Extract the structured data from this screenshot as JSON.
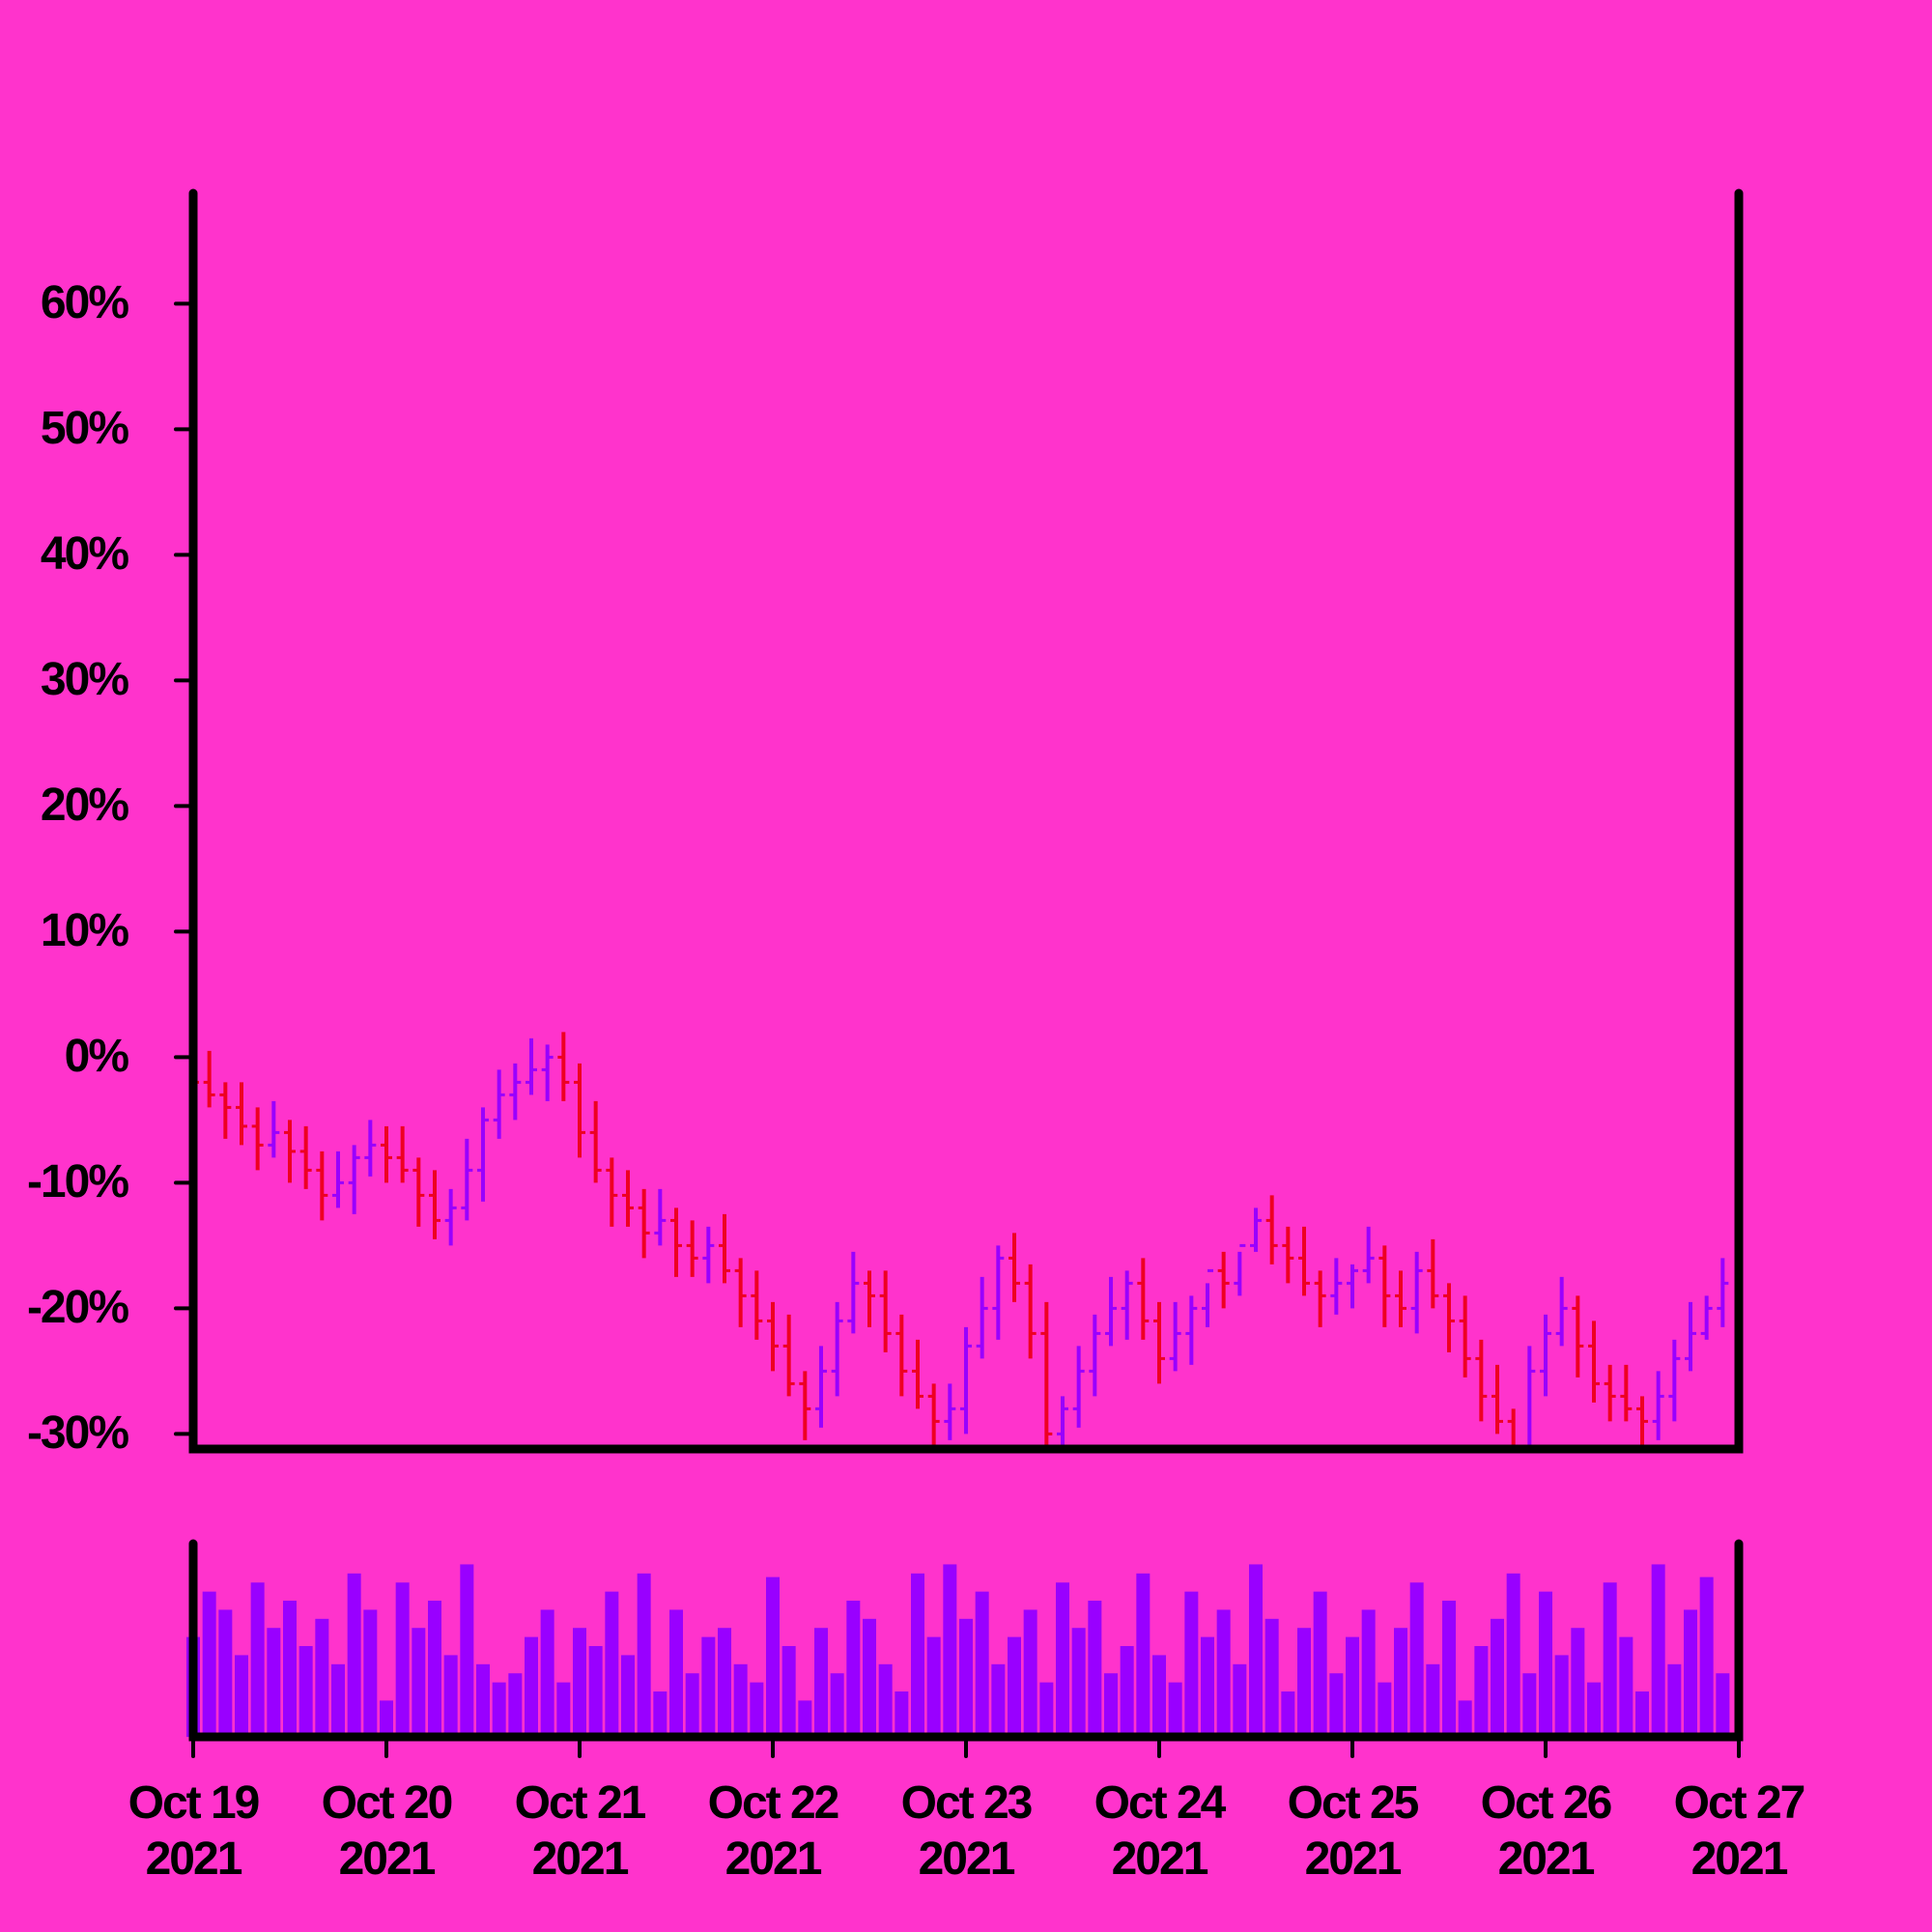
{
  "chart_data": {
    "type": "ohlc",
    "x": [
      0,
      2,
      4,
      6,
      8,
      10,
      12,
      14,
      16,
      18,
      20,
      22,
      24,
      26,
      28,
      30,
      32,
      34,
      36,
      38,
      40,
      42,
      44,
      46,
      48,
      50,
      52,
      54,
      56,
      58,
      60,
      62,
      64,
      66,
      68,
      70,
      72,
      74,
      76,
      78,
      80,
      82,
      84,
      86,
      88,
      90,
      92,
      94,
      96,
      98,
      100,
      102,
      104,
      106,
      108,
      110,
      112,
      114,
      116,
      118,
      120,
      122,
      124,
      126,
      128,
      130,
      132,
      134,
      136,
      138,
      140,
      142,
      144,
      146,
      148,
      150,
      152,
      154,
      156,
      158,
      160,
      162,
      164,
      166,
      168,
      170,
      172,
      174,
      176,
      178,
      180,
      182,
      184,
      186,
      188,
      190
    ],
    "open": [
      -1,
      -2,
      -3,
      -4,
      -5.5,
      -7,
      -6,
      -7.5,
      -9,
      -11,
      -10,
      -8,
      -7,
      -8,
      -9,
      -11,
      -13,
      -12,
      -9,
      -5,
      -3,
      -2,
      -1,
      0,
      -2,
      -6,
      -9,
      -11,
      -12,
      -14,
      -13,
      -15,
      -16,
      -15,
      -17,
      -19,
      -21,
      -23,
      -26,
      -28,
      -25,
      -21,
      -18,
      -19,
      -22,
      -25,
      -27,
      -29,
      -28,
      -23,
      -20,
      -16,
      -18,
      -22,
      -30,
      -28,
      -25,
      -22,
      -20,
      -18,
      -21,
      -24,
      -22,
      -20,
      -17,
      -18,
      -15,
      -13,
      -15,
      -16,
      -18,
      -19,
      -18,
      -17,
      -16,
      -19,
      -20,
      -17,
      -19,
      -21,
      -24,
      -27,
      -29,
      -31,
      -25,
      -22,
      -20,
      -23,
      -26,
      -27,
      -28,
      -29,
      -27,
      -24,
      -22,
      -20
    ],
    "high": [
      0.5,
      0.5,
      -2,
      -2,
      -4,
      -3.5,
      -5,
      -5.5,
      -7.5,
      -7.5,
      -7,
      -5,
      -5.5,
      -5.5,
      -8,
      -9,
      -10.5,
      -6.5,
      -4,
      -1,
      -0.5,
      1.5,
      1,
      2,
      -0.5,
      -3.5,
      -8,
      -9,
      -10.5,
      -10.5,
      -12,
      -13,
      -13.5,
      -12.5,
      -16,
      -17,
      -19.5,
      -20.5,
      -25,
      -23,
      -19.5,
      -15.5,
      -17,
      -17,
      -20.5,
      -22.5,
      -26,
      -26,
      -21.5,
      -17.5,
      -15,
      -14,
      -16.5,
      -19.5,
      -27,
      -23,
      -20.5,
      -17.5,
      -17,
      -16,
      -19.5,
      -19.5,
      -19,
      -18,
      -15.5,
      -15.5,
      -12,
      -11,
      -13.5,
      -13.5,
      -17,
      -16,
      -16.5,
      -13.5,
      -15,
      -17,
      -15.5,
      -14.5,
      -18,
      -19,
      -22.5,
      -24.5,
      -28,
      -23,
      -20.5,
      -17.5,
      -19,
      -21,
      -24.5,
      -24.5,
      -27,
      -25,
      -22.5,
      -19.5,
      -19,
      -16
    ],
    "low": [
      -4,
      -4,
      -6.5,
      -7,
      -9,
      -8,
      -10,
      -10.5,
      -13,
      -12,
      -12.5,
      -9.5,
      -10,
      -10,
      -13.5,
      -14.5,
      -15,
      -13,
      -11.5,
      -6.5,
      -5,
      -3,
      -3.5,
      -3.5,
      -8,
      -10,
      -13.5,
      -13.5,
      -16,
      -15,
      -17.5,
      -17.5,
      -18,
      -18,
      -21.5,
      -22.5,
      -25,
      -27,
      -30.5,
      -29.5,
      -27,
      -22,
      -21.5,
      -23.5,
      -27,
      -28,
      -31.5,
      -30.5,
      -30,
      -24,
      -22.5,
      -19.5,
      -24,
      -31,
      -32.5,
      -29.5,
      -27,
      -23,
      -22.5,
      -22.5,
      -26,
      -25,
      -24.5,
      -21.5,
      -20,
      -19,
      -15.5,
      -16.5,
      -18,
      -19,
      -21.5,
      -20.5,
      -20,
      -18,
      -21.5,
      -21.5,
      -22,
      -20,
      -23.5,
      -25.5,
      -29,
      -30,
      -33.5,
      -32.5,
      -27,
      -23,
      -25.5,
      -27.5,
      -29,
      -29,
      -31.5,
      -30.5,
      -29,
      -25,
      -22.5,
      -21.5
    ],
    "close": [
      -2,
      -3,
      -4,
      -5.5,
      -7,
      -6,
      -7.5,
      -9,
      -11,
      -10,
      -8,
      -7,
      -8,
      -9,
      -11,
      -13,
      -12,
      -9,
      -5,
      -3,
      -2,
      -1,
      0,
      -2,
      -6,
      -9,
      -11,
      -12,
      -14,
      -13,
      -15,
      -16,
      -15,
      -17,
      -19,
      -21,
      -23,
      -26,
      -28,
      -25,
      -21,
      -18,
      -19,
      -22,
      -25,
      -27,
      -29,
      -28,
      -23,
      -20,
      -16,
      -18,
      -22,
      -30,
      -28,
      -25,
      -22,
      -20,
      -18,
      -21,
      -24,
      -22,
      -20,
      -17,
      -18,
      -15,
      -13,
      -15,
      -16,
      -18,
      -19,
      -18,
      -17,
      -16,
      -19,
      -20,
      -17,
      -19,
      -21,
      -24,
      -27,
      -29,
      -31,
      -25,
      -22,
      -20,
      -23,
      -26,
      -27,
      -28,
      -29,
      -27,
      -24,
      -22,
      -20,
      -18
    ],
    "volume": [
      55,
      80,
      70,
      45,
      85,
      60,
      75,
      50,
      65,
      40,
      90,
      70,
      20,
      85,
      60,
      75,
      45,
      95,
      40,
      30,
      35,
      55,
      70,
      30,
      60,
      50,
      80,
      45,
      90,
      25,
      70,
      35,
      55,
      60,
      40,
      30,
      88,
      50,
      20,
      60,
      35,
      75,
      65,
      40,
      25,
      90,
      55,
      95,
      65,
      80,
      40,
      55,
      70,
      30,
      85,
      60,
      75,
      35,
      50,
      90,
      45,
      30,
      80,
      55,
      70,
      40,
      95,
      65,
      25,
      60,
      80,
      35,
      55,
      70,
      30,
      60,
      85,
      40,
      75,
      20,
      50,
      65,
      90,
      35,
      80,
      45,
      60,
      30,
      85,
      55,
      25,
      95,
      40,
      70,
      88,
      35
    ],
    "up_color": "#9900ff",
    "down_color": "#ee0022",
    "volume_color": "#9900ff",
    "xlim": [
      0,
      192
    ],
    "xticks": [
      {
        "value": 0,
        "label": "Oct 19 2021"
      },
      {
        "value": 24,
        "label": "Oct 20 2021"
      },
      {
        "value": 48,
        "label": "Oct 21 2021"
      },
      {
        "value": 72,
        "label": "Oct 22 2021"
      },
      {
        "value": 96,
        "label": "Oct 23 2021"
      },
      {
        "value": 120,
        "label": "Oct 24 2021"
      },
      {
        "value": 144,
        "label": "Oct 25 2021"
      },
      {
        "value": 168,
        "label": "Oct 26 2021"
      },
      {
        "value": 192,
        "label": "Oct 27 2021"
      }
    ],
    "ylim": [
      -31.2,
      68.8
    ],
    "yticks": [
      {
        "value": -30,
        "label": "-30%"
      },
      {
        "value": -20,
        "label": "-20%"
      },
      {
        "value": -10,
        "label": "-10%"
      },
      {
        "value": 0,
        "label": "0%"
      },
      {
        "value": 10,
        "label": "10%"
      },
      {
        "value": 20,
        "label": "20%"
      },
      {
        "value": 30,
        "label": "30%"
      },
      {
        "value": 40,
        "label": "40%"
      },
      {
        "value": 50,
        "label": "50%"
      },
      {
        "value": 60,
        "label": "60%"
      }
    ]
  }
}
